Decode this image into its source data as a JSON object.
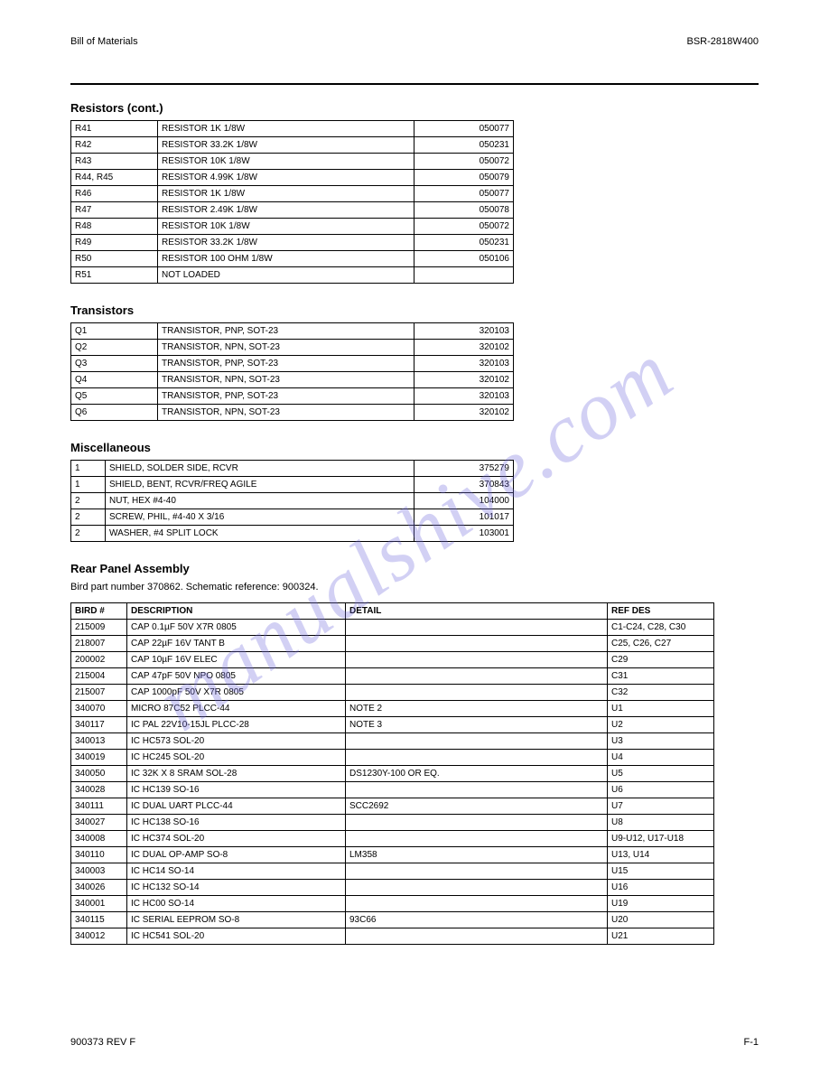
{
  "watermark": "manualshive.com",
  "header": {
    "left": "Bill of Materials",
    "right": "BSR-2818W400"
  },
  "footer": {
    "left": "900373 REV F",
    "center": "",
    "right": "F-1"
  },
  "tableA": {
    "title": "Resistors (cont.)",
    "widths": [
      96,
      284,
      110
    ],
    "rows": [
      [
        "R41",
        "RESISTOR 1K 1/8W",
        "050077"
      ],
      [
        "R42",
        "RESISTOR 33.2K 1/8W",
        "050231"
      ],
      [
        "R43",
        "RESISTOR 10K 1/8W",
        "050072"
      ],
      [
        "R44, R45",
        "RESISTOR 4.99K 1/8W",
        "050079"
      ],
      [
        "R46",
        "RESISTOR 1K 1/8W",
        "050077"
      ],
      [
        "R47",
        "RESISTOR 2.49K 1/8W",
        "050078"
      ],
      [
        "R48",
        "RESISTOR 10K 1/8W",
        "050072"
      ],
      [
        "R49",
        "RESISTOR 33.2K 1/8W",
        "050231"
      ],
      [
        "R50",
        "RESISTOR 100 OHM 1/8W",
        "050106"
      ],
      [
        "R51",
        "NOT LOADED",
        ""
      ]
    ]
  },
  "tableB": {
    "title": "Transistors",
    "widths": [
      96,
      284,
      110
    ],
    "rows": [
      [
        "Q1",
        "TRANSISTOR, PNP, SOT-23",
        "320103"
      ],
      [
        "Q2",
        "TRANSISTOR, NPN, SOT-23",
        "320102"
      ],
      [
        "Q3",
        "TRANSISTOR, PNP, SOT-23",
        "320103"
      ],
      [
        "Q4",
        "TRANSISTOR, NPN, SOT-23",
        "320102"
      ],
      [
        "Q5",
        "TRANSISTOR, PNP, SOT-23",
        "320103"
      ],
      [
        "Q6",
        "TRANSISTOR, NPN, SOT-23",
        "320102"
      ]
    ]
  },
  "tableC": {
    "title": "Miscellaneous",
    "widths": [
      38,
      342,
      110
    ],
    "rows": [
      [
        "1",
        "SHIELD, SOLDER SIDE, RCVR",
        "375279"
      ],
      [
        "1",
        "SHIELD, BENT, RCVR/FREQ AGILE",
        "370843"
      ],
      [
        "2",
        "NUT, HEX #4-40",
        "104000"
      ],
      [
        "2",
        "SCREW, PHIL, #4-40 X 3/16",
        "101017"
      ],
      [
        "2",
        "WASHER, #4 SPLIT LOCK",
        "103001"
      ]
    ]
  },
  "tableD": {
    "title": "Rear Panel Assembly",
    "intro": "Bird part number 370862. Schematic reference: 900324.",
    "widths": [
      62,
      242,
      290,
      118
    ],
    "headers": [
      "BIRD #",
      "DESCRIPTION",
      "DETAIL",
      "REF DES"
    ],
    "rows": [
      [
        "215009",
        "CAP 0.1µF 50V X7R 0805",
        "",
        "C1-C24, C28, C30"
      ],
      [
        "218007",
        "CAP 22µF 16V TANT B",
        "",
        "C25, C26, C27"
      ],
      [
        "200002",
        "CAP 10µF 16V ELEC",
        "",
        "C29"
      ],
      [
        "215004",
        "CAP 47pF 50V NPO 0805",
        "",
        "C31"
      ],
      [
        "215007",
        "CAP 1000pF 50V X7R 0805",
        "",
        "C32"
      ],
      [
        "340070",
        "MICRO 87C52 PLCC-44",
        "NOTE 2",
        "U1"
      ],
      [
        "340117",
        "IC PAL 22V10-15JL PLCC-28",
        "NOTE 3",
        "U2"
      ],
      [
        "340013",
        "IC HC573 SOL-20",
        "",
        "U3"
      ],
      [
        "340019",
        "IC HC245 SOL-20",
        "",
        "U4"
      ],
      [
        "340050",
        "IC 32K X 8 SRAM SOL-28",
        "DS1230Y-100 OR EQ.",
        "U5"
      ],
      [
        "340028",
        "IC HC139 SO-16",
        "",
        "U6"
      ],
      [
        "340111",
        "IC DUAL UART PLCC-44",
        "SCC2692",
        "U7"
      ],
      [
        "340027",
        "IC HC138 SO-16",
        "",
        "U8"
      ],
      [
        "340008",
        "IC HC374 SOL-20",
        "",
        "U9-U12, U17-U18"
      ],
      [
        "340110",
        "IC DUAL OP-AMP SO-8",
        "LM358",
        "U13, U14"
      ],
      [
        "340003",
        "IC HC14 SO-14",
        "",
        "U15"
      ],
      [
        "340026",
        "IC HC132 SO-14",
        "",
        "U16"
      ],
      [
        "340001",
        "IC HC00 SO-14",
        "",
        "U19"
      ],
      [
        "340115",
        "IC SERIAL EEPROM SO-8",
        "93C66",
        "U20"
      ],
      [
        "340012",
        "IC HC541 SOL-20",
        "",
        "U21"
      ]
    ]
  }
}
